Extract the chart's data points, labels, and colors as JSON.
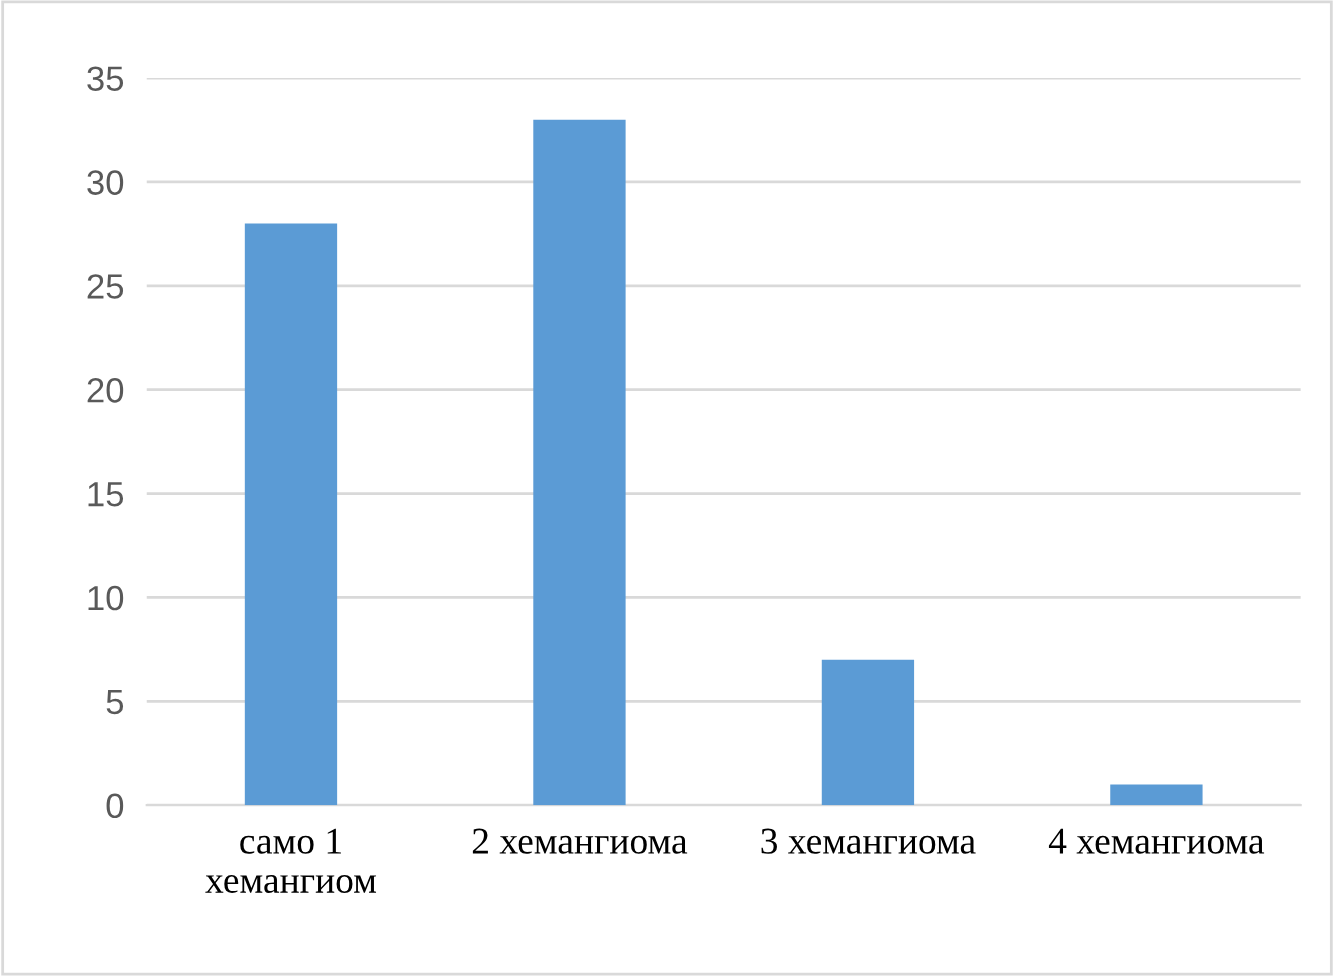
{
  "chart_data": {
    "type": "bar",
    "categories": [
      "само 1\nхемангиом",
      "2 хемангиома",
      "3 хемангиома",
      "4 хемангиома"
    ],
    "values": [
      28,
      33,
      7,
      1
    ],
    "color": "#5b9bd5",
    "ylim": [
      0,
      35
    ],
    "yticks": [
      0,
      5,
      10,
      15,
      20,
      25,
      30,
      35
    ],
    "grid": "y"
  }
}
